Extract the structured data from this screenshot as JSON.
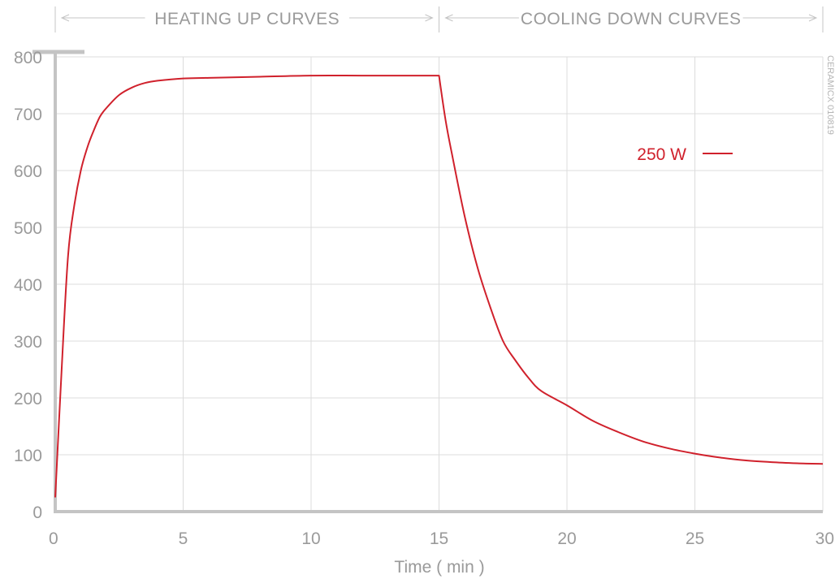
{
  "chart_data": {
    "type": "line",
    "title": "",
    "xlabel": "Time ( min )",
    "ylabel": "",
    "xlim": [
      0,
      30
    ],
    "ylim": [
      0,
      800
    ],
    "x_ticks": [
      0,
      5,
      10,
      15,
      20,
      25,
      30
    ],
    "y_ticks": [
      0,
      100,
      200,
      300,
      400,
      500,
      600,
      700,
      800
    ],
    "grid": true,
    "legend_position": "top-right",
    "phases": [
      {
        "label": "HEATING UP CURVES",
        "from": 0,
        "to": 15
      },
      {
        "label": "COOLING DOWN CURVES",
        "from": 15,
        "to": 30
      }
    ],
    "series": [
      {
        "name": "250 W",
        "color": "#d0212c",
        "x": [
          0,
          0.25,
          0.5,
          0.75,
          1,
          1.25,
          1.5,
          1.75,
          2,
          2.5,
          3,
          3.5,
          4,
          5,
          6,
          8,
          10,
          12,
          14,
          15,
          15.25,
          15.5,
          16,
          16.5,
          17,
          17.5,
          18,
          18.5,
          19,
          20,
          21,
          22,
          23,
          24,
          25,
          26,
          27,
          28,
          29,
          30
        ],
        "y": [
          25,
          250,
          450,
          540,
          600,
          640,
          670,
          695,
          710,
          733,
          746,
          754,
          758,
          762,
          763,
          765,
          767,
          767,
          767,
          767,
          690,
          630,
          520,
          430,
          360,
          300,
          265,
          235,
          212,
          187,
          160,
          140,
          123,
          111,
          102,
          95,
          90,
          87,
          85,
          84
        ]
      }
    ],
    "annotations": [
      "CERAMICX 010819"
    ]
  }
}
